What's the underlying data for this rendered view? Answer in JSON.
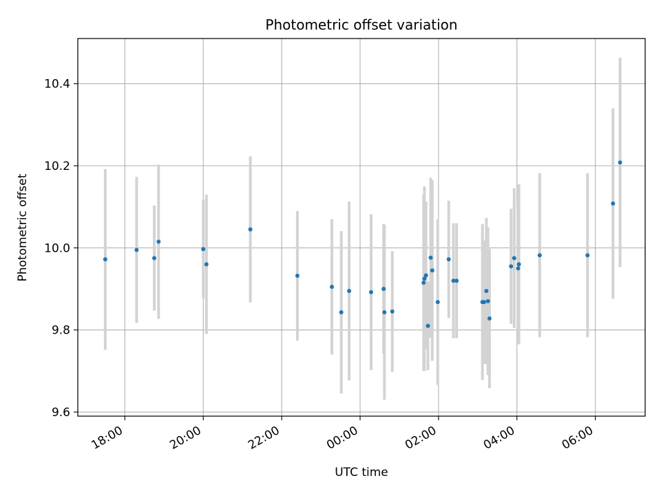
{
  "chart_data": {
    "type": "scatter",
    "title": "Photometric offset variation",
    "xlabel": "UTC time",
    "ylabel": "Photometric offset",
    "x_unit": "hours since 00:00 UTC (negative = previous evening)",
    "xlim": [
      -7.2,
      7.27
    ],
    "ylim": [
      9.59,
      10.51
    ],
    "xticks": [
      {
        "value": -6,
        "label": "18:00"
      },
      {
        "value": -4,
        "label": "20:00"
      },
      {
        "value": -2,
        "label": "22:00"
      },
      {
        "value": 0,
        "label": "00:00"
      },
      {
        "value": 2,
        "label": "02:00"
      },
      {
        "value": 4,
        "label": "04:00"
      },
      {
        "value": 6,
        "label": "06:00"
      }
    ],
    "yticks": [
      {
        "value": 9.6,
        "label": "9.6"
      },
      {
        "value": 9.8,
        "label": "9.8"
      },
      {
        "value": 10.0,
        "label": "10.0"
      },
      {
        "value": 10.2,
        "label": "10.2"
      },
      {
        "value": 10.4,
        "label": "10.4"
      }
    ],
    "grid": true,
    "marker_color": "#1f77b4",
    "errorbar_color": "#d3d3d3",
    "points": [
      {
        "x": -6.5,
        "y": 9.972,
        "err": 0.22
      },
      {
        "x": -5.7,
        "y": 9.995,
        "err": 0.178
      },
      {
        "x": -5.25,
        "y": 9.975,
        "err": 0.128
      },
      {
        "x": -5.14,
        "y": 10.015,
        "err": 0.188
      },
      {
        "x": -4.0,
        "y": 9.997,
        "err": 0.12
      },
      {
        "x": -3.92,
        "y": 9.96,
        "err": 0.17
      },
      {
        "x": -2.8,
        "y": 10.045,
        "err": 0.178
      },
      {
        "x": -1.6,
        "y": 9.932,
        "err": 0.158
      },
      {
        "x": -0.72,
        "y": 9.905,
        "err": 0.165
      },
      {
        "x": -0.48,
        "y": 9.843,
        "err": 0.198
      },
      {
        "x": -0.28,
        "y": 9.895,
        "err": 0.218
      },
      {
        "x": 0.28,
        "y": 9.892,
        "err": 0.19
      },
      {
        "x": 0.6,
        "y": 9.9,
        "err": 0.158
      },
      {
        "x": 0.62,
        "y": 9.843,
        "err": 0.213
      },
      {
        "x": 0.82,
        "y": 9.845,
        "err": 0.147
      },
      {
        "x": 1.62,
        "y": 9.915,
        "err": 0.215
      },
      {
        "x": 1.64,
        "y": 9.925,
        "err": 0.225
      },
      {
        "x": 1.68,
        "y": 9.933,
        "err": 0.18
      },
      {
        "x": 1.73,
        "y": 9.81,
        "err": 0.108
      },
      {
        "x": 1.8,
        "y": 9.976,
        "err": 0.195
      },
      {
        "x": 1.84,
        "y": 9.945,
        "err": 0.22
      },
      {
        "x": 1.98,
        "y": 9.868,
        "err": 0.202
      },
      {
        "x": 2.26,
        "y": 9.972,
        "err": 0.143
      },
      {
        "x": 2.38,
        "y": 9.92,
        "err": 0.14
      },
      {
        "x": 2.46,
        "y": 9.92,
        "err": 0.14
      },
      {
        "x": 3.12,
        "y": 9.868,
        "err": 0.19
      },
      {
        "x": 3.16,
        "y": 9.868,
        "err": 0.15
      },
      {
        "x": 3.22,
        "y": 9.895,
        "err": 0.178
      },
      {
        "x": 3.26,
        "y": 9.87,
        "err": 0.18
      },
      {
        "x": 3.3,
        "y": 9.828,
        "err": 0.17
      },
      {
        "x": 3.85,
        "y": 9.955,
        "err": 0.14
      },
      {
        "x": 3.93,
        "y": 9.975,
        "err": 0.17
      },
      {
        "x": 4.03,
        "y": 9.95,
        "err": 0.15
      },
      {
        "x": 4.05,
        "y": 9.96,
        "err": 0.195
      },
      {
        "x": 4.58,
        "y": 9.982,
        "err": 0.2
      },
      {
        "x": 5.8,
        "y": 9.982,
        "err": 0.2
      },
      {
        "x": 6.45,
        "y": 10.108,
        "err": 0.232
      },
      {
        "x": 6.63,
        "y": 10.208,
        "err": 0.255
      }
    ]
  }
}
